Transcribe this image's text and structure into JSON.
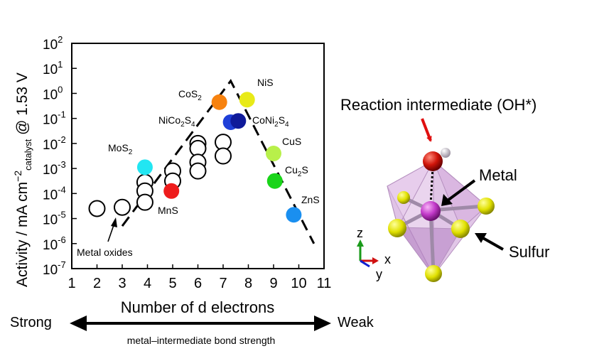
{
  "chart_data": {
    "type": "scatter",
    "xlabel": "Number of d electrons",
    "ylabel_main": "Activity / mA cm",
    "ylabel_sup": "−2",
    "ylabel_sub": "catalyst",
    "ylabel_tail": " @ 1.53 V",
    "xlim": [
      1,
      11
    ],
    "ylim_log10": [
      -7,
      2
    ],
    "yscale": "log",
    "x_ticks": [
      "1",
      "2",
      "3",
      "4",
      "5",
      "6",
      "7",
      "8",
      "9",
      "10",
      "11"
    ],
    "y_ticks": [
      {
        "base": "10",
        "exp": "2"
      },
      {
        "base": "10",
        "exp": "1"
      },
      {
        "base": "10",
        "exp": "0"
      },
      {
        "base": "10",
        "exp": "-1"
      },
      {
        "base": "10",
        "exp": "-2"
      },
      {
        "base": "10",
        "exp": "-3"
      },
      {
        "base": "10",
        "exp": "-4"
      },
      {
        "base": "10",
        "exp": "-5"
      },
      {
        "base": "10",
        "exp": "-6"
      },
      {
        "base": "10",
        "exp": "-7"
      }
    ],
    "oxides": [
      {
        "x": 2,
        "log10y": -4.6
      },
      {
        "x": 3,
        "log10y": -4.55
      },
      {
        "x": 3.9,
        "log10y": -3.55
      },
      {
        "x": 3.9,
        "log10y": -3.9
      },
      {
        "x": 3.9,
        "log10y": -4.35
      },
      {
        "x": 5,
        "log10y": -3.1
      },
      {
        "x": 5,
        "log10y": -3.5
      },
      {
        "x": 6,
        "log10y": -2.0
      },
      {
        "x": 6,
        "log10y": -2.2
      },
      {
        "x": 6,
        "log10y": -2.75
      },
      {
        "x": 6,
        "log10y": -3.1
      },
      {
        "x": 7,
        "log10y": -1.95
      },
      {
        "x": 7,
        "log10y": -2.5
      }
    ],
    "sulfides": [
      {
        "x": 3.9,
        "log10y": -2.95,
        "color": "#22e6f2"
      },
      {
        "x": 4.95,
        "log10y": -3.9,
        "color": "#ee1c1c"
      },
      {
        "x": 6.85,
        "log10y": -0.35,
        "color": "#f7820f"
      },
      {
        "x": 7.3,
        "log10y": -1.15,
        "color": "#1f3fd8"
      },
      {
        "x": 7.6,
        "log10y": -1.1,
        "color": "#0f1a9a"
      },
      {
        "x": 7.95,
        "log10y": -0.25,
        "color": "#e8ea18"
      },
      {
        "x": 9.0,
        "log10y": -2.4,
        "color": "#b8f04a"
      },
      {
        "x": 9.05,
        "log10y": -3.5,
        "color": "#19d419"
      },
      {
        "x": 9.8,
        "log10y": -4.85,
        "color": "#1a8ff0"
      }
    ],
    "volcano": [
      {
        "x": 3.0,
        "log10y": -5.3
      },
      {
        "x": 7.3,
        "log10y": 0.5
      },
      {
        "x": 10.6,
        "log10y": -6.0
      }
    ],
    "labels": {
      "mos2": "MoS",
      "mos2_sub": "2",
      "mns": "MnS",
      "cos2": "CoS",
      "cos2_sub": "2",
      "nico2s4_a": "NiCo",
      "nico2s4_b": "2",
      "nico2s4_c": "S",
      "nico2s4_d": "4",
      "nis": "NiS",
      "coni2s4_a": "CoNi",
      "coni2s4_b": "2",
      "coni2s4_c": "S",
      "coni2s4_d": "4",
      "cus": "CuS",
      "cu2s_a": "Cu",
      "cu2s_b": "2",
      "cu2s_c": "S",
      "zns": "ZnS",
      "metal_oxides": "Metal oxides"
    }
  },
  "bond_strength": {
    "strong": "Strong",
    "weak": "Weak",
    "caption": "metal–intermediate  bond strength"
  },
  "structure": {
    "intermediate": "Reaction intermediate (OH*)",
    "metal": "Metal",
    "sulfur": "Sulfur",
    "axis_z": "z",
    "axis_x": "x",
    "axis_y": "y"
  }
}
